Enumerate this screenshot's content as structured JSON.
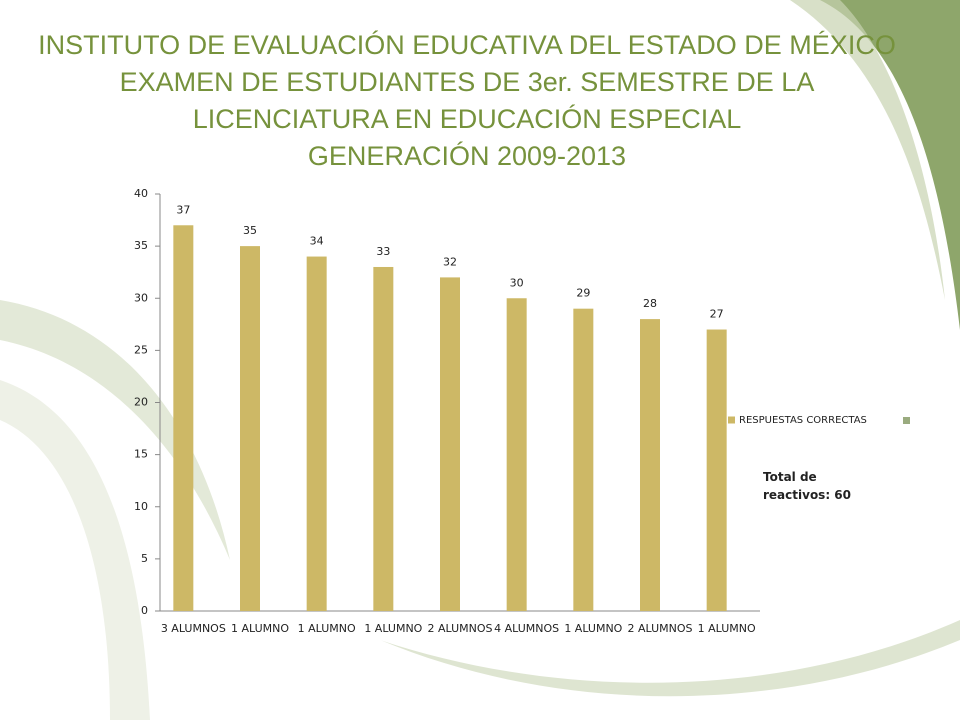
{
  "chart_data": {
    "type": "bar",
    "title": [
      "INSTITUTO DE EVALUACIÓN EDUCATIVA DEL ESTADO DE MÉXICO",
      "EXAMEN DE ESTUDIANTES DE 3er. SEMESTRE  DE LA",
      "LICENCIATURA EN EDUCACIÓN ESPECIAL",
      "GENERACIÓN 2009-2013"
    ],
    "categories": [
      "3 ALUMNOS",
      "1 ALUMNO",
      "1 ALUMNO",
      "1 ALUMNO",
      "2 ALUMNOS",
      "4 ALUMNOS",
      "1 ALUMNO",
      "2 ALUMNOS",
      "1 ALUMNO"
    ],
    "series": [
      {
        "name": "RESPUESTAS CORRECTAS",
        "color": "#cdb866",
        "values": [
          37,
          35,
          34,
          33,
          32,
          30,
          29,
          28,
          27
        ]
      }
    ],
    "ylim": [
      0,
      40
    ],
    "yticks": [
      0,
      5,
      10,
      15,
      20,
      25,
      30,
      35,
      40
    ],
    "grid": false,
    "legend": "right",
    "annotation": "Total de reactivos: 60"
  }
}
